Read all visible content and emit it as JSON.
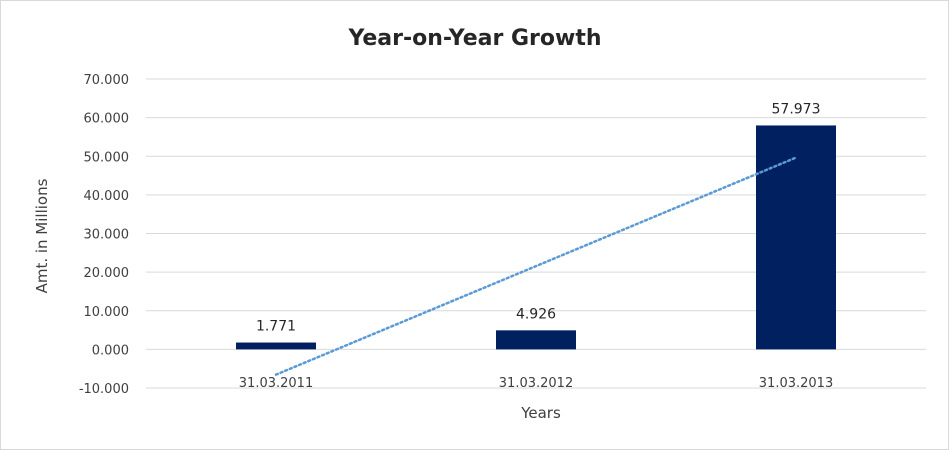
{
  "chart_data": {
    "type": "bar",
    "title": "Year-on-Year Growth",
    "xlabel": "Years",
    "ylabel": "Amt. in Millions",
    "categories": [
      "31.03.2011",
      "31.03.2012",
      "31.03.2013"
    ],
    "values": [
      1.771,
      4.926,
      57.973
    ],
    "value_labels": [
      "1.771",
      "4.926",
      "57.973"
    ],
    "ylim": [
      -10,
      70
    ],
    "yticks": [
      -10,
      0,
      10,
      20,
      30,
      40,
      50,
      60,
      70
    ],
    "ytick_labels": [
      "-10.000",
      "0.000",
      "10.000",
      "20.000",
      "30.000",
      "40.000",
      "50.000",
      "60.000",
      "70.000"
    ],
    "grid": true,
    "legend": "none",
    "trendline": {
      "type": "linear",
      "style": "dotted",
      "color": "#5b9bd5"
    },
    "bar_color": "#002060"
  }
}
